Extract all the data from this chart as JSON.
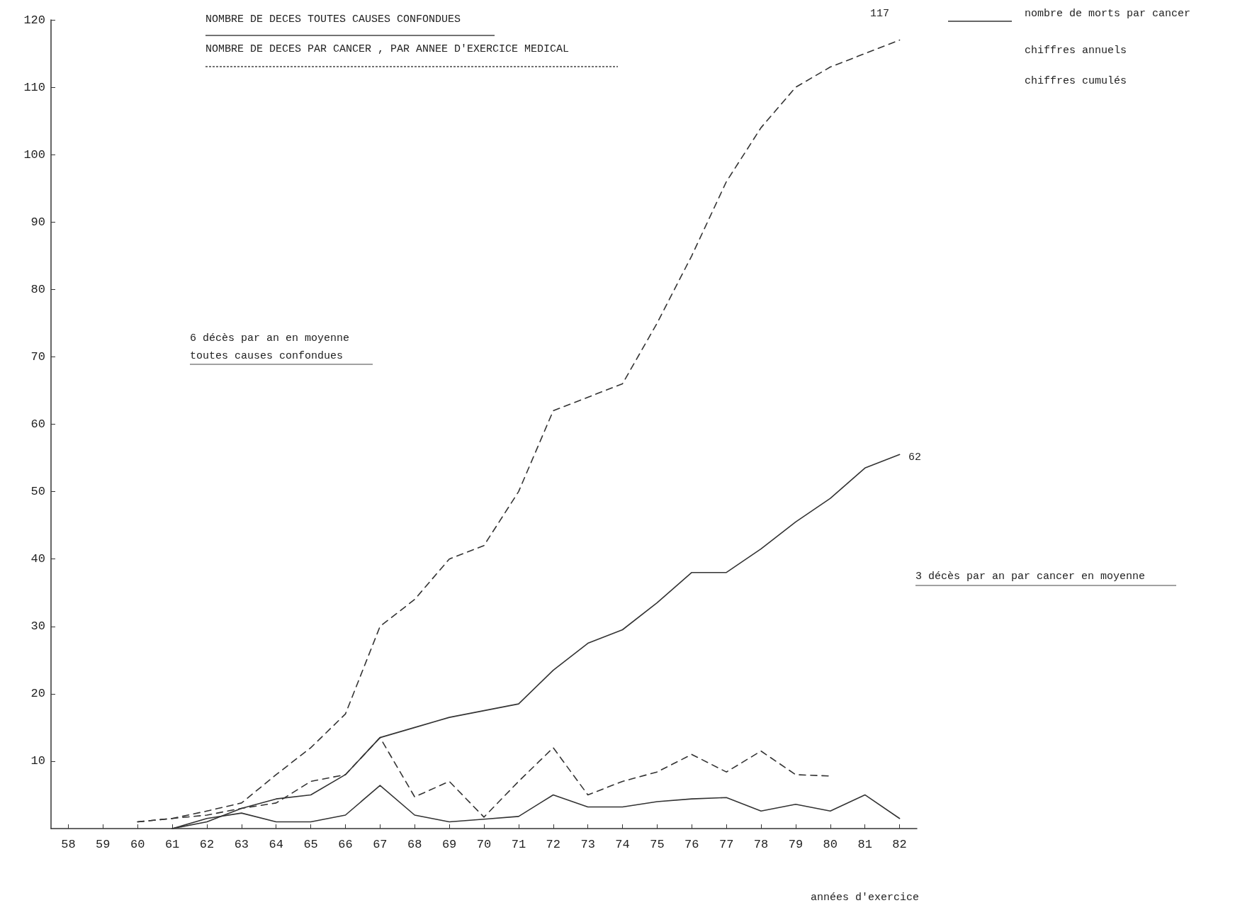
{
  "chart_data": {
    "type": "line",
    "title": "NOMBRE DE DECES TOUTES CAUSES CONFONDUES",
    "subtitle": "NOMBRE DE DECES PAR CANCER , PAR ANNEE D'EXERCICE MEDICAL",
    "xlabel": "années d'exercice",
    "categories": [
      "58",
      "59",
      "60",
      "61",
      "62",
      "63",
      "64",
      "65",
      "66",
      "67",
      "68",
      "69",
      "70",
      "71",
      "72",
      "73",
      "74",
      "75",
      "76",
      "77",
      "78",
      "79",
      "80",
      "81",
      "82"
    ],
    "series": [
      {
        "color": "#333333",
        "line_style": "dashed",
        "values": [
          null,
          null,
          1,
          1.5,
          2.6,
          3.8,
          8,
          12,
          17,
          30,
          34,
          40,
          42,
          50,
          62,
          64,
          66,
          75,
          85,
          96,
          104,
          110,
          113,
          115,
          117
        ]
      },
      {
        "color": "#333333",
        "line_style": "solid",
        "values": [
          null,
          null,
          null,
          0,
          1,
          3,
          4.4,
          5,
          8,
          13.5,
          15,
          16.5,
          17.5,
          18.5,
          23.5,
          27.5,
          29.5,
          33.5,
          38,
          38,
          41.5,
          45.5,
          49,
          53.5,
          55.5
        ]
      },
      {
        "color": "#333333",
        "line_style": "dashed",
        "values": [
          null,
          null,
          1,
          1.5,
          2,
          3,
          3.8,
          7,
          8,
          13.5,
          4.7,
          7,
          1.7,
          7,
          12,
          5,
          7,
          8.4,
          11,
          8.4,
          11.5,
          8,
          7.8,
          null,
          null
        ]
      },
      {
        "color": "#333333",
        "line_style": "solid",
        "values": [
          null,
          null,
          null,
          0,
          1.5,
          2.3,
          1,
          1,
          2,
          6.4,
          2,
          1,
          1.4,
          1.8,
          5,
          3.2,
          3.2,
          4,
          4.4,
          4.6,
          2.6,
          3.6,
          2.6,
          5,
          1.5
        ]
      }
    ],
    "ylim": [
      0,
      120
    ],
    "yticks": [
      10,
      20,
      30,
      40,
      50,
      60,
      70,
      80,
      90,
      100,
      110,
      120
    ],
    "grid": false,
    "marker": "none",
    "annotations": [
      "117",
      "62",
      "6 décès par an en moyenne",
      "toutes causes confondues",
      "3 décès par an par cancer en moyenne",
      "nombre de morts par cancer",
      "chiffres annuels",
      "chiffres cumulés"
    ]
  }
}
